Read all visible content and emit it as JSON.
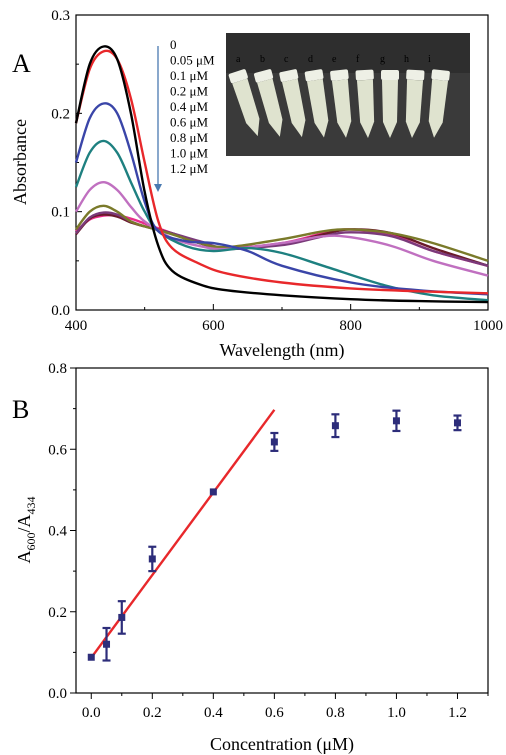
{
  "panel_a_label": "A",
  "panel_b_label": "B",
  "photo": {
    "description_letters": [
      "a",
      "b",
      "c",
      "d",
      "e",
      "f",
      "g",
      "h",
      "i"
    ],
    "background_color": "#3a3a3a",
    "tube_color": "#dfe3cf"
  },
  "chart_data": [
    {
      "type": "line",
      "panel": "A",
      "xlabel": "Wavelength (nm)",
      "ylabel": "Absorbance",
      "xlim": [
        400,
        1000
      ],
      "ylim": [
        0,
        0.3
      ],
      "x_ticks": [
        400,
        600,
        800,
        1000
      ],
      "y_ticks": [
        0.0,
        0.1,
        0.2,
        0.3
      ],
      "y_tick_labels": [
        "0.0",
        "0.1",
        "0.2",
        "0.3"
      ],
      "legend_arrow": "down",
      "series": [
        {
          "name": "0",
          "color": "#000000",
          "points": [
            [
              400,
              0.19
            ],
            [
              420,
              0.25
            ],
            [
              440,
              0.268
            ],
            [
              460,
              0.255
            ],
            [
              480,
              0.2
            ],
            [
              500,
              0.12
            ],
            [
              520,
              0.065
            ],
            [
              540,
              0.04
            ],
            [
              580,
              0.026
            ],
            [
              620,
              0.02
            ],
            [
              700,
              0.015
            ],
            [
              800,
              0.011
            ],
            [
              900,
              0.009
            ],
            [
              1000,
              0.008
            ]
          ]
        },
        {
          "name": "0.05 μM",
          "color": "#e8282b",
          "points": [
            [
              400,
              0.19
            ],
            [
              420,
              0.245
            ],
            [
              440,
              0.263
            ],
            [
              460,
              0.255
            ],
            [
              480,
              0.215
            ],
            [
              500,
              0.15
            ],
            [
              520,
              0.09
            ],
            [
              540,
              0.063
            ],
            [
              580,
              0.047
            ],
            [
              620,
              0.037
            ],
            [
              700,
              0.028
            ],
            [
              800,
              0.022
            ],
            [
              900,
              0.019
            ],
            [
              1000,
              0.017
            ]
          ]
        },
        {
          "name": "0.1 μM",
          "color": "#3a45a8",
          "points": [
            [
              400,
              0.15
            ],
            [
              420,
              0.195
            ],
            [
              440,
              0.21
            ],
            [
              460,
              0.2
            ],
            [
              480,
              0.16
            ],
            [
              500,
              0.11
            ],
            [
              520,
              0.08
            ],
            [
              560,
              0.07
            ],
            [
              600,
              0.068
            ],
            [
              650,
              0.06
            ],
            [
              700,
              0.045
            ],
            [
              800,
              0.028
            ],
            [
              900,
              0.02
            ],
            [
              1000,
              0.016
            ]
          ]
        },
        {
          "name": "0.2 μM",
          "color": "#1e8080",
          "points": [
            [
              400,
              0.125
            ],
            [
              420,
              0.16
            ],
            [
              440,
              0.172
            ],
            [
              460,
              0.16
            ],
            [
              480,
              0.13
            ],
            [
              500,
              0.1
            ],
            [
              520,
              0.08
            ],
            [
              560,
              0.065
            ],
            [
              600,
              0.06
            ],
            [
              650,
              0.063
            ],
            [
              700,
              0.058
            ],
            [
              760,
              0.045
            ],
            [
              850,
              0.025
            ],
            [
              920,
              0.015
            ],
            [
              1000,
              0.01
            ]
          ]
        },
        {
          "name": "0.4 μM",
          "color": "#c070c0",
          "points": [
            [
              400,
              0.1
            ],
            [
              420,
              0.122
            ],
            [
              440,
              0.13
            ],
            [
              460,
              0.122
            ],
            [
              480,
              0.105
            ],
            [
              500,
              0.09
            ],
            [
              540,
              0.073
            ],
            [
              580,
              0.065
            ],
            [
              620,
              0.062
            ],
            [
              700,
              0.068
            ],
            [
              760,
              0.075
            ],
            [
              800,
              0.074
            ],
            [
              860,
              0.065
            ],
            [
              920,
              0.05
            ],
            [
              1000,
              0.035
            ]
          ]
        },
        {
          "name": "0.6 μM",
          "color": "#7a7a2a",
          "points": [
            [
              400,
              0.082
            ],
            [
              420,
              0.1
            ],
            [
              440,
              0.106
            ],
            [
              460,
              0.1
            ],
            [
              480,
              0.09
            ],
            [
              500,
              0.085
            ],
            [
              540,
              0.077
            ],
            [
              580,
              0.068
            ],
            [
              620,
              0.064
            ],
            [
              700,
              0.072
            ],
            [
              760,
              0.08
            ],
            [
              800,
              0.082
            ],
            [
              860,
              0.078
            ],
            [
              920,
              0.068
            ],
            [
              1000,
              0.05
            ]
          ]
        },
        {
          "name": "0.8 μM",
          "color": "#7a3a7a",
          "points": [
            [
              400,
              0.078
            ],
            [
              420,
              0.094
            ],
            [
              440,
              0.099
            ],
            [
              460,
              0.097
            ],
            [
              480,
              0.09
            ],
            [
              500,
              0.085
            ],
            [
              540,
              0.078
            ],
            [
              580,
              0.07
            ],
            [
              620,
              0.063
            ],
            [
              700,
              0.066
            ],
            [
              760,
              0.075
            ],
            [
              800,
              0.079
            ],
            [
              860,
              0.075
            ],
            [
              920,
              0.06
            ],
            [
              1000,
              0.045
            ]
          ]
        },
        {
          "name": "1.0 μM",
          "color": "#6a1a2a",
          "points": [
            [
              400,
              0.077
            ],
            [
              420,
              0.093
            ],
            [
              440,
              0.097
            ],
            [
              460,
              0.095
            ],
            [
              480,
              0.089
            ],
            [
              500,
              0.085
            ],
            [
              540,
              0.078
            ],
            [
              580,
              0.068
            ],
            [
              620,
              0.062
            ],
            [
              700,
              0.067
            ],
            [
              760,
              0.077
            ],
            [
              800,
              0.082
            ],
            [
              860,
              0.078
            ],
            [
              920,
              0.063
            ],
            [
              1000,
              0.045
            ]
          ]
        },
        {
          "name": "1.2 μM",
          "color": "#ea2a8a",
          "points": [
            [
              400,
              0.08
            ],
            [
              420,
              0.092
            ],
            [
              440,
              0.096
            ],
            [
              460,
              0.096
            ],
            [
              480,
              0.093
            ],
            [
              500,
              0.088
            ],
            [
              540,
              0.078
            ],
            [
              580,
              0.068
            ],
            [
              620,
              0.063
            ],
            [
              700,
              0.068
            ],
            [
              760,
              0.078
            ],
            [
              800,
              0.082
            ],
            [
              860,
              0.076
            ],
            [
              920,
              0.06
            ],
            [
              1000,
              0.045
            ]
          ]
        }
      ]
    },
    {
      "type": "scatter",
      "panel": "B",
      "xlabel": "Concentration (μM)",
      "ylabel_main": "A",
      "ylabel_sub1": "600",
      "ylabel_mid": "/A",
      "ylabel_sub2": "434",
      "xlim": [
        -0.05,
        1.3
      ],
      "ylim": [
        0,
        0.8
      ],
      "x_ticks": [
        0.0,
        0.2,
        0.4,
        0.6,
        0.8,
        1.0,
        1.2
      ],
      "x_tick_labels": [
        "0.0",
        "0.2",
        "0.4",
        "0.6",
        "0.8",
        "1.0",
        "1.2"
      ],
      "y_ticks": [
        0.0,
        0.2,
        0.4,
        0.6,
        0.8
      ],
      "y_tick_labels": [
        "0.0",
        "0.2",
        "0.4",
        "0.6",
        "0.8"
      ],
      "point_color": "#2d2d7a",
      "fit_color": "#e8282b",
      "points": [
        {
          "x": 0.0,
          "y": 0.088,
          "err": 0.0
        },
        {
          "x": 0.05,
          "y": 0.12,
          "err": 0.04
        },
        {
          "x": 0.1,
          "y": 0.186,
          "err": 0.04
        },
        {
          "x": 0.2,
          "y": 0.33,
          "err": 0.03
        },
        {
          "x": 0.4,
          "y": 0.495,
          "err": 0.0
        },
        {
          "x": 0.6,
          "y": 0.618,
          "err": 0.022
        },
        {
          "x": 0.8,
          "y": 0.658,
          "err": 0.028
        },
        {
          "x": 1.0,
          "y": 0.67,
          "err": 0.025
        },
        {
          "x": 1.2,
          "y": 0.665,
          "err": 0.018
        }
      ],
      "fit_line": {
        "x": [
          0.0,
          0.6
        ],
        "y": [
          0.087,
          0.697
        ]
      }
    }
  ]
}
